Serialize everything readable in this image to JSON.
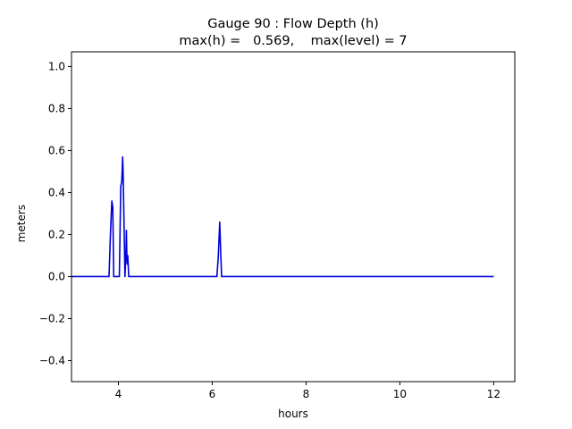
{
  "chart_data": {
    "type": "line",
    "title_line1": "Gauge 90 : Flow Depth (h)",
    "title_line2": "max(h) =   0.569,    max(level) = 7",
    "xlabel": "hours",
    "ylabel": "meters",
    "xlim": [
      3.0,
      12.45
    ],
    "ylim": [
      -0.5,
      1.07
    ],
    "xticks": [
      4,
      6,
      8,
      10,
      12
    ],
    "xtick_labels": [
      "4",
      "6",
      "8",
      "10",
      "12"
    ],
    "yticks": [
      -0.4,
      -0.2,
      0.0,
      0.2,
      0.4,
      0.6,
      0.8,
      1.0
    ],
    "ytick_labels": [
      "−0.4",
      "−0.2",
      "0.0",
      "0.2",
      "0.4",
      "0.6",
      "0.8",
      "1.0"
    ],
    "grid": false,
    "series": [
      {
        "color": "#0000dd",
        "x": [
          3.0,
          3.8,
          3.83,
          3.86,
          3.88,
          3.9,
          3.93,
          4.02,
          4.05,
          4.07,
          4.08,
          4.09,
          4.1,
          4.12,
          4.14,
          4.16,
          4.17,
          4.18,
          4.19,
          4.2,
          4.21,
          4.22,
          4.23,
          6.1,
          6.13,
          6.16,
          6.18,
          6.2,
          6.22,
          12.0
        ],
        "y": [
          0.0,
          0.0,
          0.2,
          0.36,
          0.33,
          0.0,
          0.0,
          0.0,
          0.43,
          0.45,
          0.5,
          0.57,
          0.5,
          0.25,
          0.0,
          0.1,
          0.22,
          0.1,
          0.06,
          0.1,
          0.05,
          0.0,
          0.0,
          0.0,
          0.1,
          0.26,
          0.12,
          0.0,
          0.0,
          0.0
        ]
      }
    ]
  }
}
